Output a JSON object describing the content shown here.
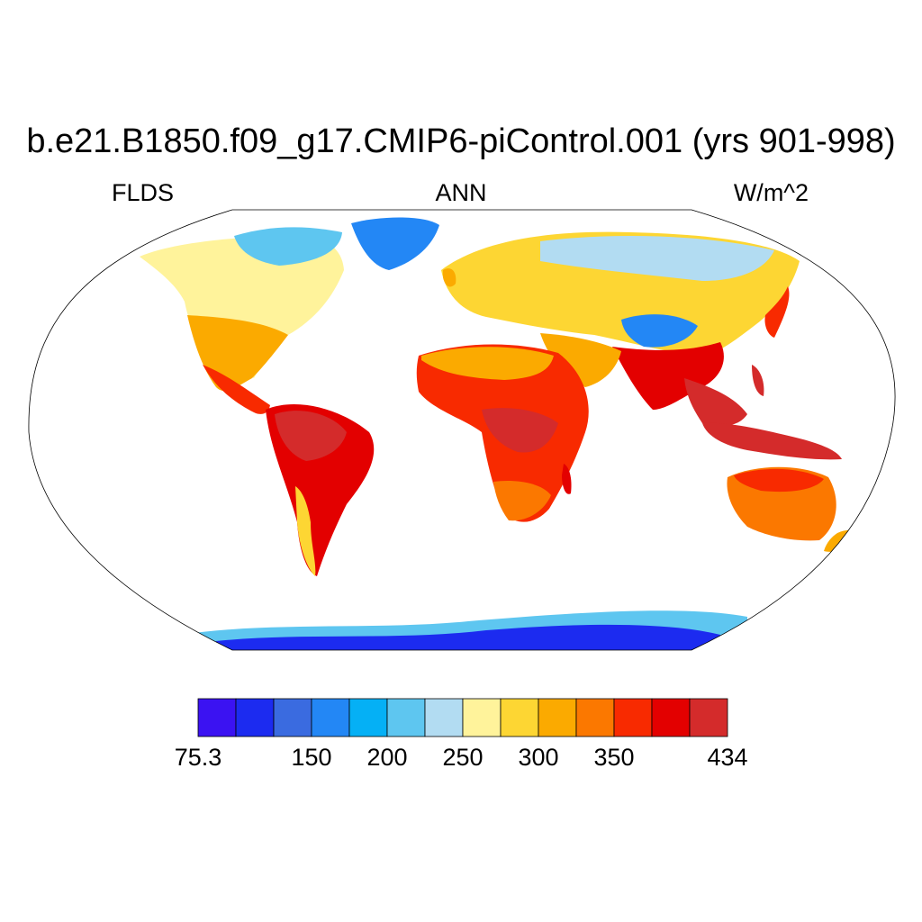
{
  "title": "b.e21.B1850.f09_g17.CMIP6-piControl.001 (yrs 901-998)",
  "left_label": "FLDS",
  "center_label": "ANN",
  "right_label": "W/m^2",
  "colorbar": {
    "colors": [
      "#3b12f2",
      "#1c2bf0",
      "#3a6be0",
      "#2387f5",
      "#05b0f5",
      "#5ec6f0",
      "#b2dcf2",
      "#fff39b",
      "#fdd633",
      "#fbaa00",
      "#fb7800",
      "#f82a00",
      "#e30000",
      "#d42b2b"
    ],
    "labels": [
      {
        "text": "75.3",
        "boundary": 0
      },
      {
        "text": "150",
        "boundary": 3
      },
      {
        "text": "200",
        "boundary": 5
      },
      {
        "text": "250",
        "boundary": 7
      },
      {
        "text": "300",
        "boundary": 9
      },
      {
        "text": "350",
        "boundary": 11
      },
      {
        "text": "434",
        "boundary": 14
      }
    ]
  }
}
